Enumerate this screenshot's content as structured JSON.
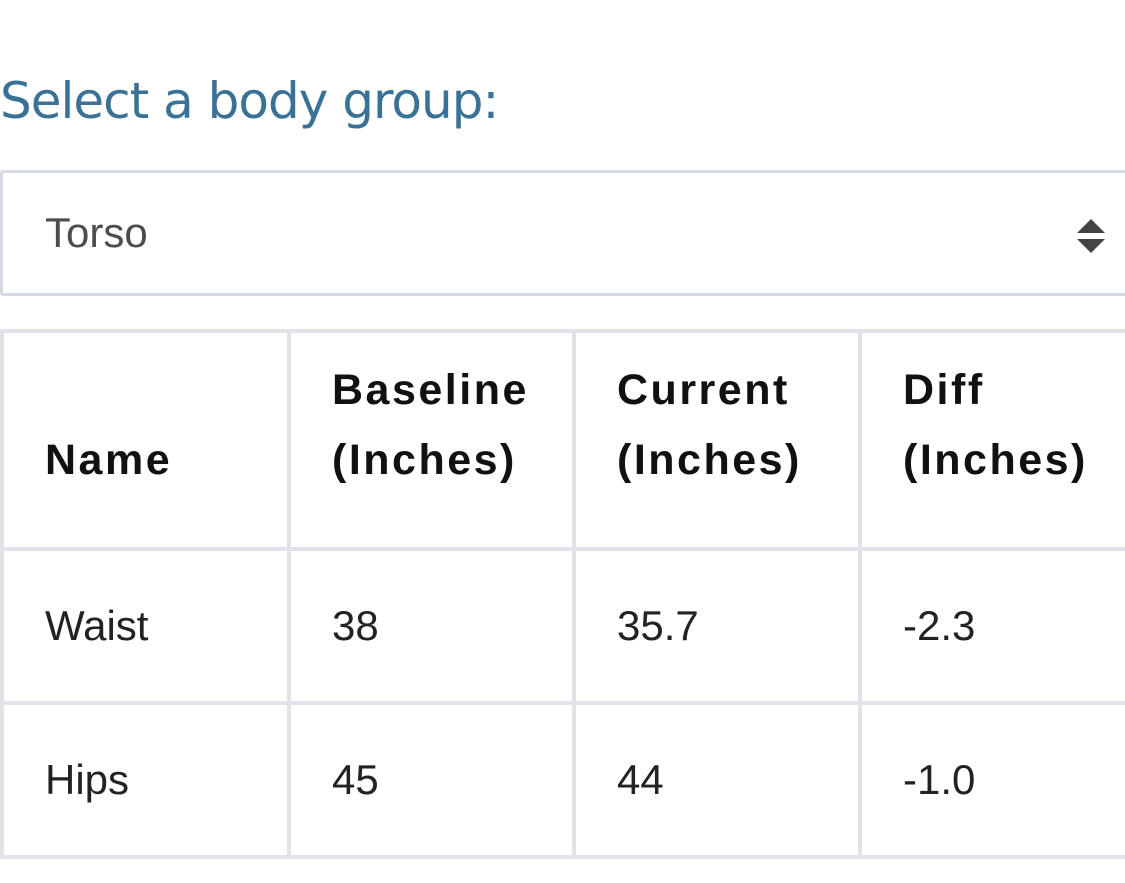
{
  "heading": "Select a body group:",
  "select": {
    "value": "Torso"
  },
  "table": {
    "columns": [
      {
        "line1": "",
        "line2": "Name"
      },
      {
        "line1": "Baseline",
        "line2": "(Inches)"
      },
      {
        "line1": "Current",
        "line2": "(Inches)"
      },
      {
        "line1": "Diff",
        "line2": "(Inches)"
      }
    ],
    "rows": [
      {
        "name": "Waist",
        "baseline": "38",
        "current": "35.7",
        "diff": "-2.3"
      },
      {
        "name": "Hips",
        "baseline": "45",
        "current": "44",
        "diff": "-1.0"
      }
    ]
  },
  "colors": {
    "heading": "#3a7297",
    "border": "#e1e3e8"
  },
  "icons": {
    "select_arrows": "sort-arrows-icon"
  }
}
